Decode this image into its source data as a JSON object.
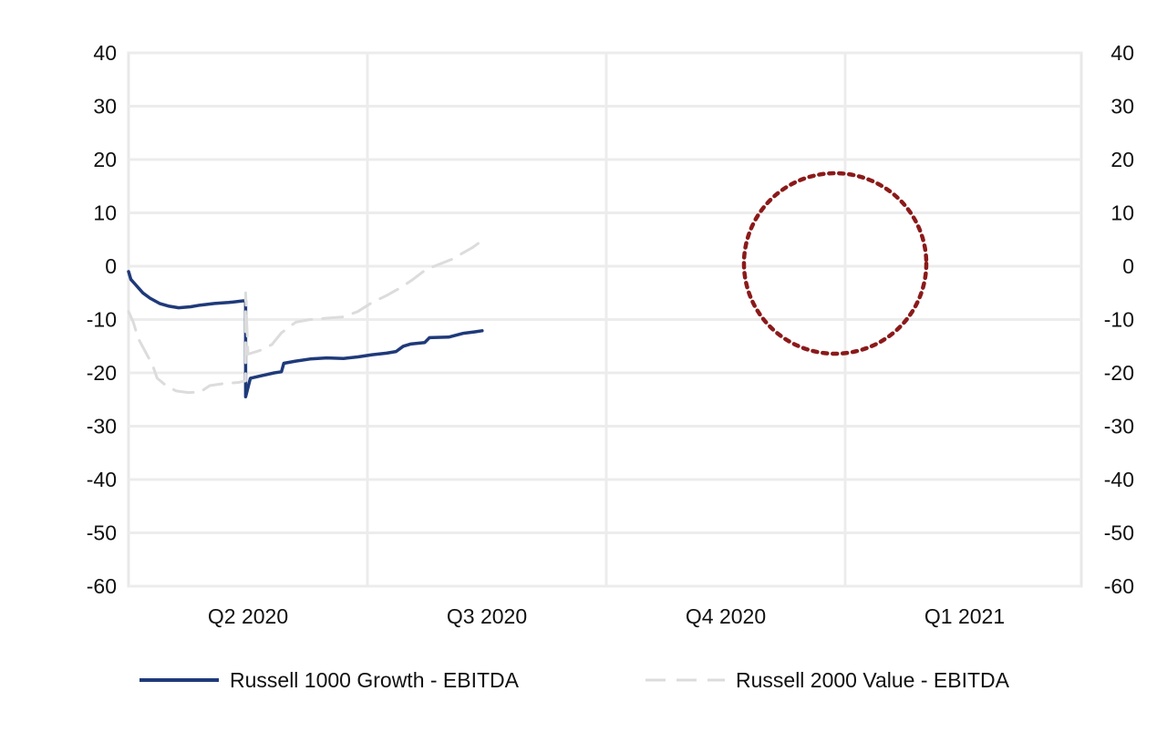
{
  "chart_data": {
    "type": "line",
    "title": "",
    "xlabel": "",
    "ylabel": "",
    "ylim": [
      -60,
      40
    ],
    "y_ticks": [
      "40",
      "30",
      "20",
      "10",
      "0",
      "-10",
      "-20",
      "-30",
      "-40",
      "-50",
      "-60"
    ],
    "y_ticks_right": [
      "40",
      "30",
      "20",
      "10",
      "0",
      "-10",
      "-20",
      "-30",
      "-40",
      "-50",
      "-60"
    ],
    "categories": [
      "Q2 2020",
      "Q3 2020",
      "Q4 2020",
      "Q1 2021"
    ],
    "grid": true,
    "legend_position": "bottom",
    "series": [
      {
        "name": "Russell 1000 Growth - EBITDA",
        "style": "solid",
        "color": "#1f3a7a",
        "points": [
          [
            0.0,
            -1
          ],
          [
            0.01,
            -2.5
          ],
          [
            0.03,
            -3.5
          ],
          [
            0.06,
            -5
          ],
          [
            0.09,
            -6
          ],
          [
            0.13,
            -7
          ],
          [
            0.17,
            -7.5
          ],
          [
            0.21,
            -7.8
          ],
          [
            0.26,
            -7.6
          ],
          [
            0.3,
            -7.3
          ],
          [
            0.36,
            -7
          ],
          [
            0.42,
            -6.8
          ],
          [
            0.48,
            -6.5
          ],
          [
            0.49,
            -6.5
          ],
          [
            0.49,
            -24.5
          ],
          [
            0.51,
            -21
          ],
          [
            0.56,
            -20.5
          ],
          [
            0.61,
            -20
          ],
          [
            0.64,
            -19.8
          ],
          [
            0.65,
            -18.2
          ],
          [
            0.7,
            -17.8
          ],
          [
            0.76,
            -17.4
          ],
          [
            0.83,
            -17.2
          ],
          [
            0.9,
            -17.3
          ],
          [
            0.96,
            -17
          ],
          [
            1.02,
            -16.6
          ],
          [
            1.08,
            -16.3
          ],
          [
            1.12,
            -16
          ],
          [
            1.15,
            -15
          ],
          [
            1.18,
            -14.6
          ],
          [
            1.24,
            -14.3
          ],
          [
            1.26,
            -13.4
          ],
          [
            1.34,
            -13.3
          ],
          [
            1.4,
            -12.6
          ],
          [
            1.45,
            -12.3
          ],
          [
            1.48,
            -12.1
          ]
        ]
      },
      {
        "name": "Russell 2000 Value - EBITDA",
        "style": "dashed",
        "color": "#dcdcdc",
        "points": [
          [
            0.0,
            -8.5
          ],
          [
            0.02,
            -10.5
          ],
          [
            0.04,
            -13.5
          ],
          [
            0.07,
            -16
          ],
          [
            0.1,
            -18.5
          ],
          [
            0.12,
            -21
          ],
          [
            0.16,
            -22.5
          ],
          [
            0.2,
            -23.4
          ],
          [
            0.25,
            -23.7
          ],
          [
            0.3,
            -23.6
          ],
          [
            0.34,
            -22.4
          ],
          [
            0.4,
            -22
          ],
          [
            0.46,
            -21.8
          ],
          [
            0.49,
            -21.5
          ],
          [
            0.49,
            -5
          ],
          [
            0.5,
            -16.5
          ],
          [
            0.55,
            -15.8
          ],
          [
            0.6,
            -14.7
          ],
          [
            0.64,
            -12.5
          ],
          [
            0.7,
            -10.5
          ],
          [
            0.76,
            -10
          ],
          [
            0.82,
            -9.8
          ],
          [
            0.9,
            -9.5
          ],
          [
            0.96,
            -8.5
          ],
          [
            1.02,
            -6.8
          ],
          [
            1.08,
            -5.5
          ],
          [
            1.14,
            -4
          ],
          [
            1.19,
            -2.5
          ],
          [
            1.24,
            -0.8
          ],
          [
            1.28,
            0
          ],
          [
            1.32,
            0.7
          ],
          [
            1.36,
            1.4
          ],
          [
            1.4,
            2.5
          ],
          [
            1.44,
            3.5
          ],
          [
            1.48,
            4.8
          ]
        ]
      }
    ],
    "annotation": {
      "shape": "circle",
      "style": "dotted",
      "color": "#8b1a1a"
    }
  }
}
